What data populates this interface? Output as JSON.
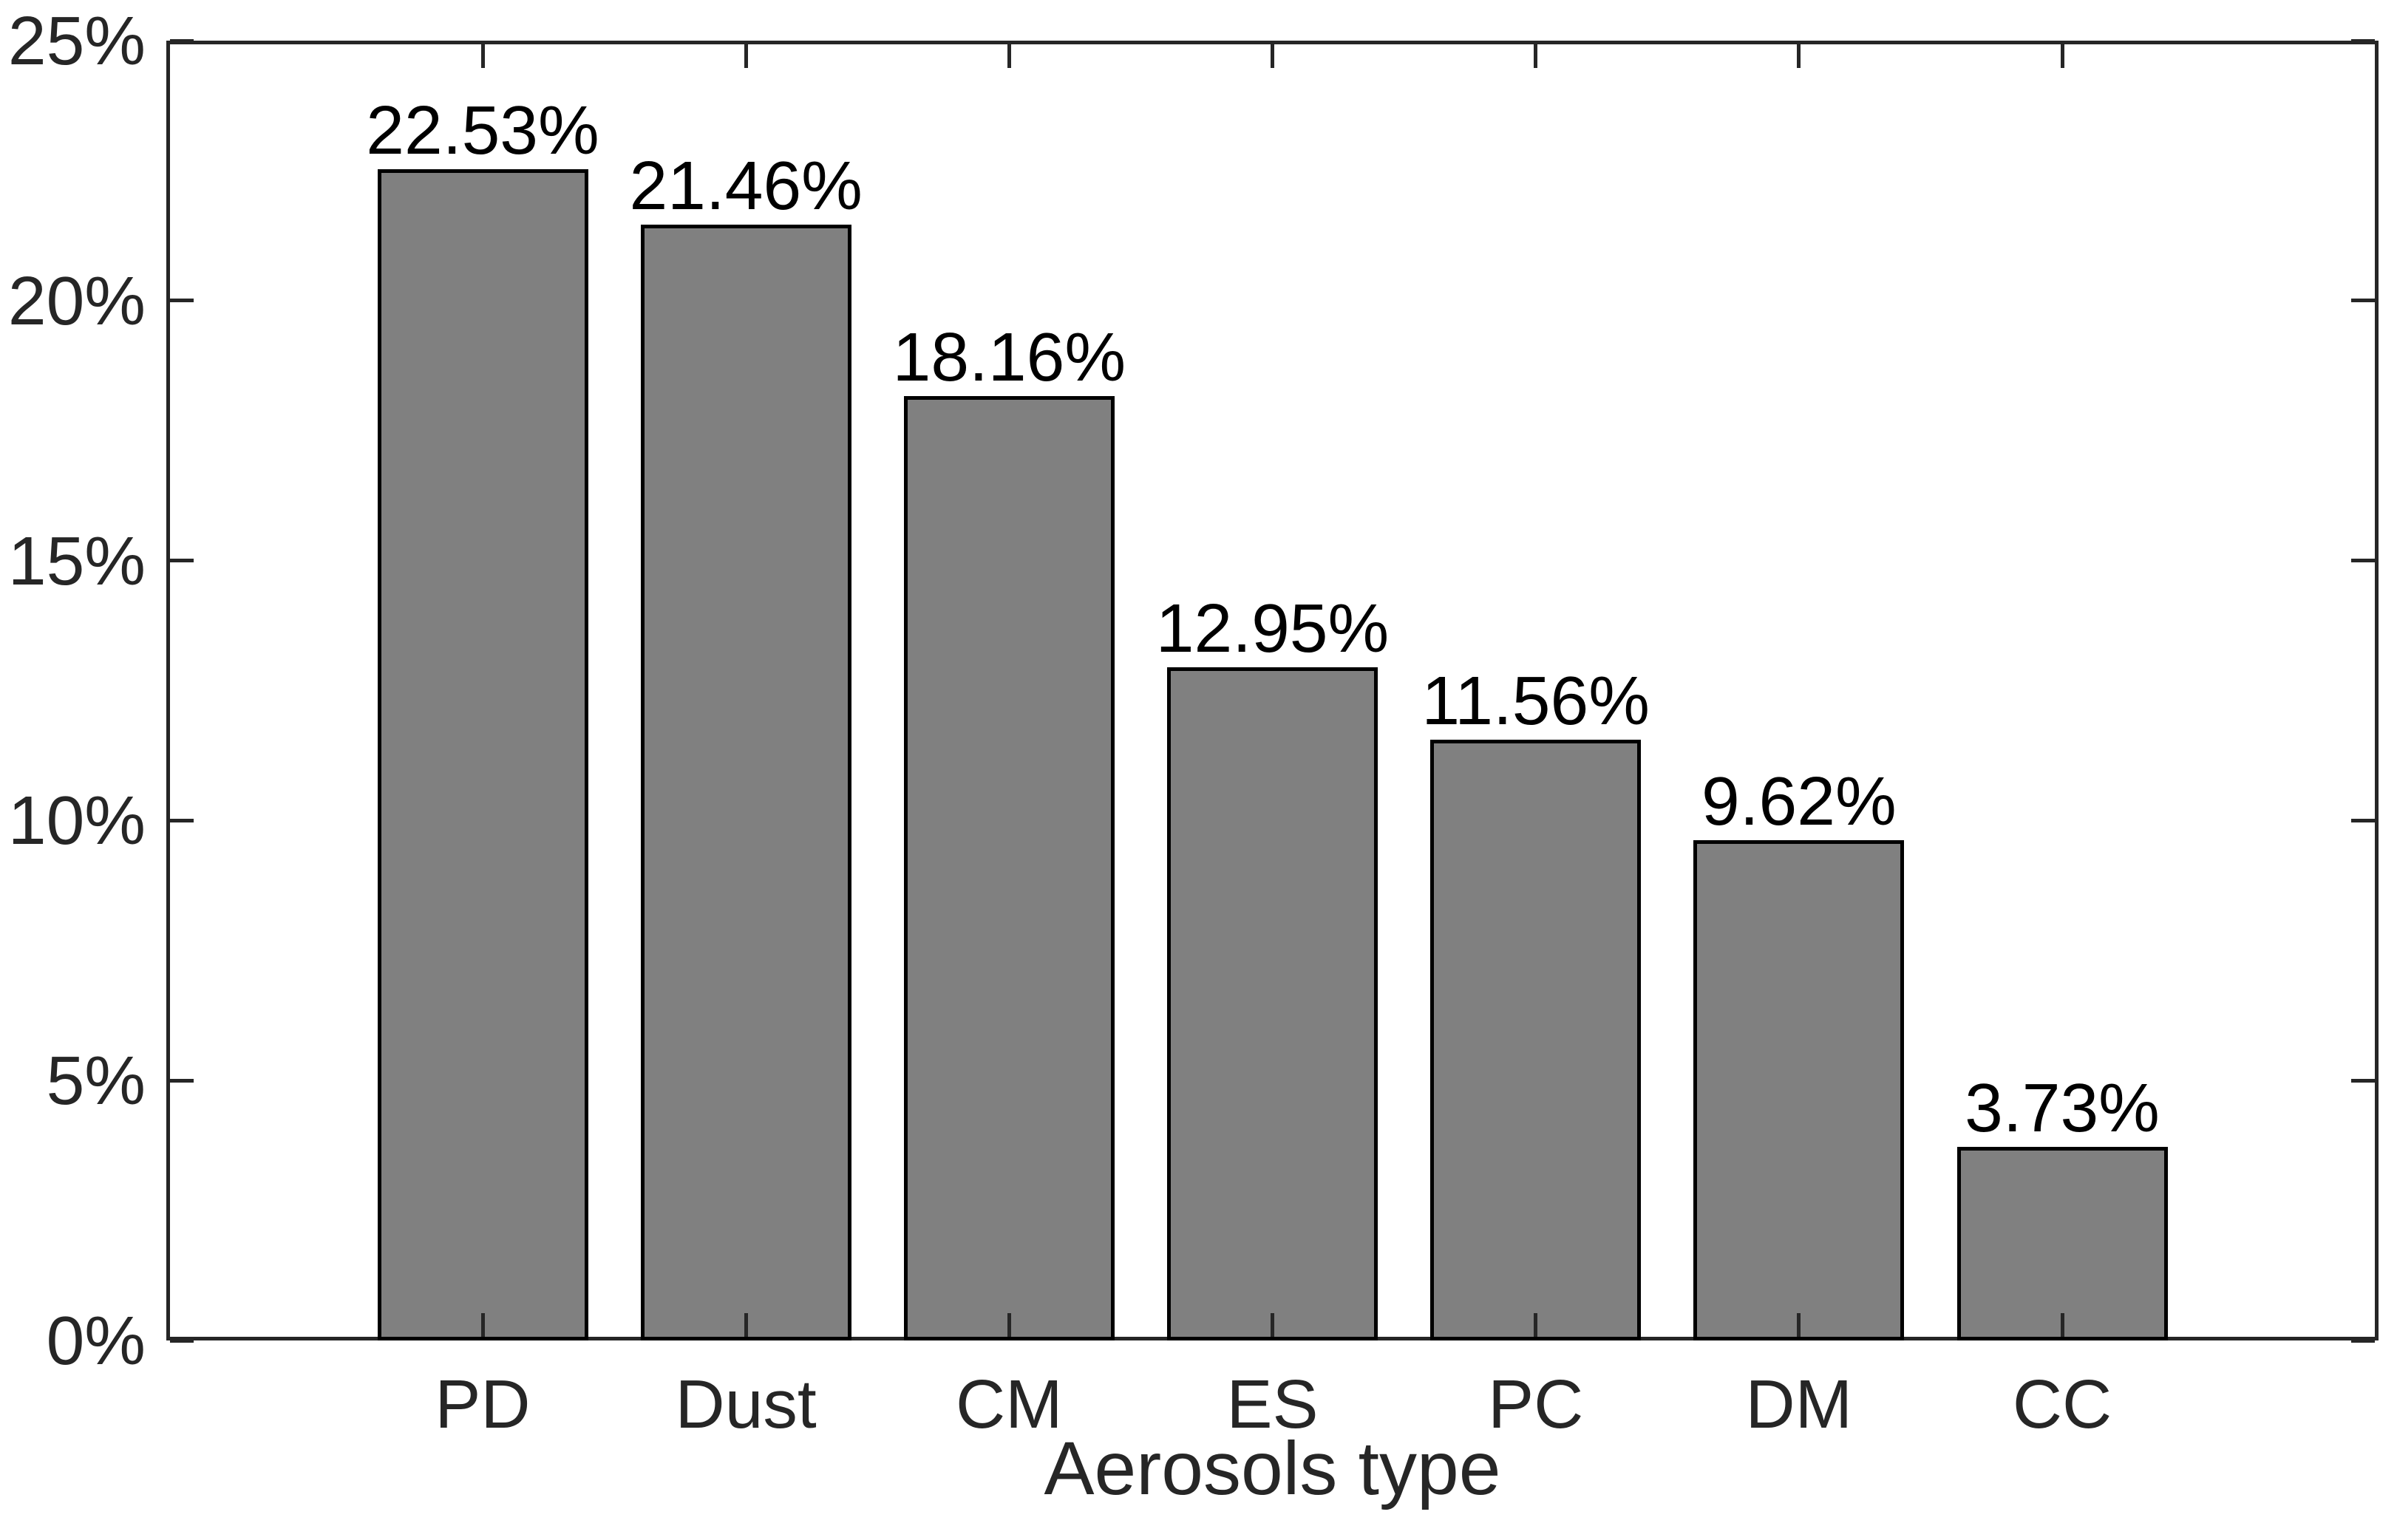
{
  "figure": {
    "background_color": "#ffffff"
  },
  "chart_data": {
    "type": "bar",
    "title": "",
    "xlabel": "Aerosols type",
    "ylabel": "",
    "categories": [
      "PD",
      "Dust",
      "CM",
      "ES",
      "PC",
      "DM",
      "CC"
    ],
    "values": [
      22.53,
      21.46,
      18.16,
      12.95,
      11.56,
      9.62,
      3.73
    ],
    "value_labels": [
      "22.53%",
      "21.46%",
      "18.16%",
      "12.95%",
      "11.56%",
      "9.62%",
      "3.73%"
    ],
    "ylim": [
      0,
      25
    ],
    "yticks": [
      0,
      5,
      10,
      15,
      20,
      25
    ],
    "ytick_labels": [
      "0%",
      "5%",
      "10%",
      "15%",
      "20%",
      "25%"
    ],
    "grid": false,
    "box": true,
    "tick_direction": "in",
    "legend": null,
    "bar_color": "#808080",
    "bar_edge_color": "#000000",
    "axis_color": "#262626",
    "value_label_color": "#000000"
  }
}
